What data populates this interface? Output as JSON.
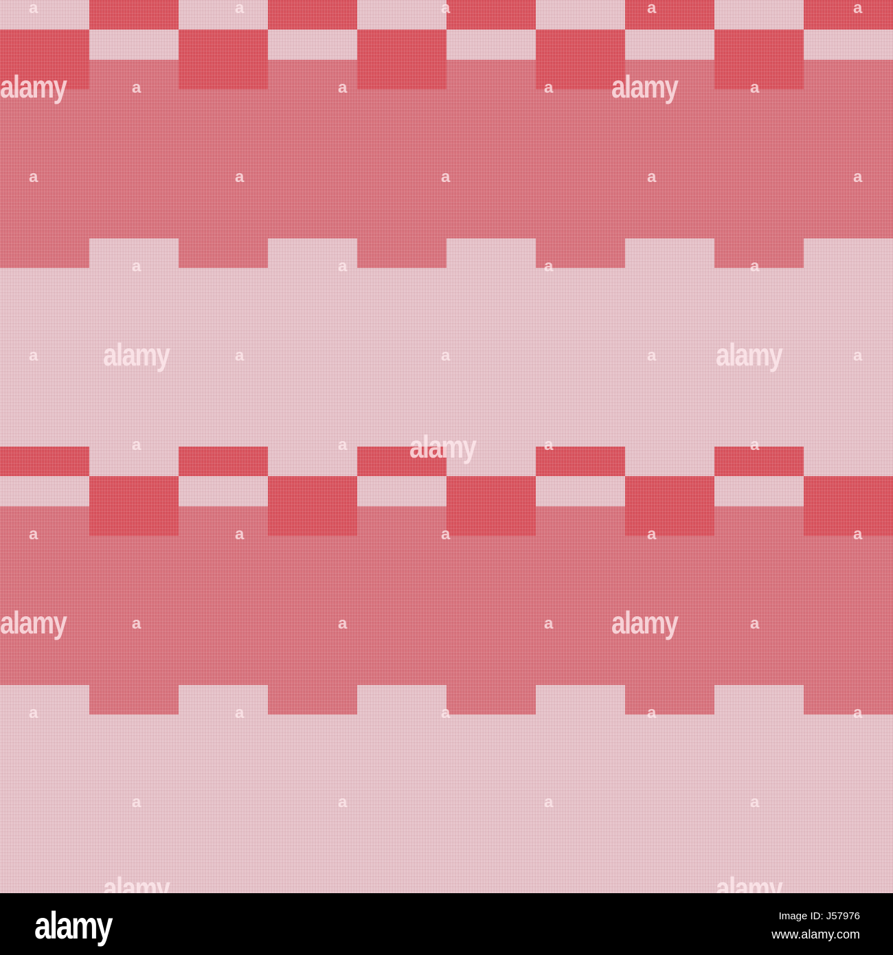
{
  "image": {
    "subject": "red and pink checked linen fabric texture",
    "colors": {
      "dark": "#d9535d",
      "medium": "#d8737d",
      "light": "#e6c3ca"
    },
    "watermark_text": "alamy",
    "watermark_letter": "a"
  },
  "footer": {
    "logo": "alamy",
    "image_id": "Image ID: J57976",
    "website": "www.alamy.com"
  }
}
